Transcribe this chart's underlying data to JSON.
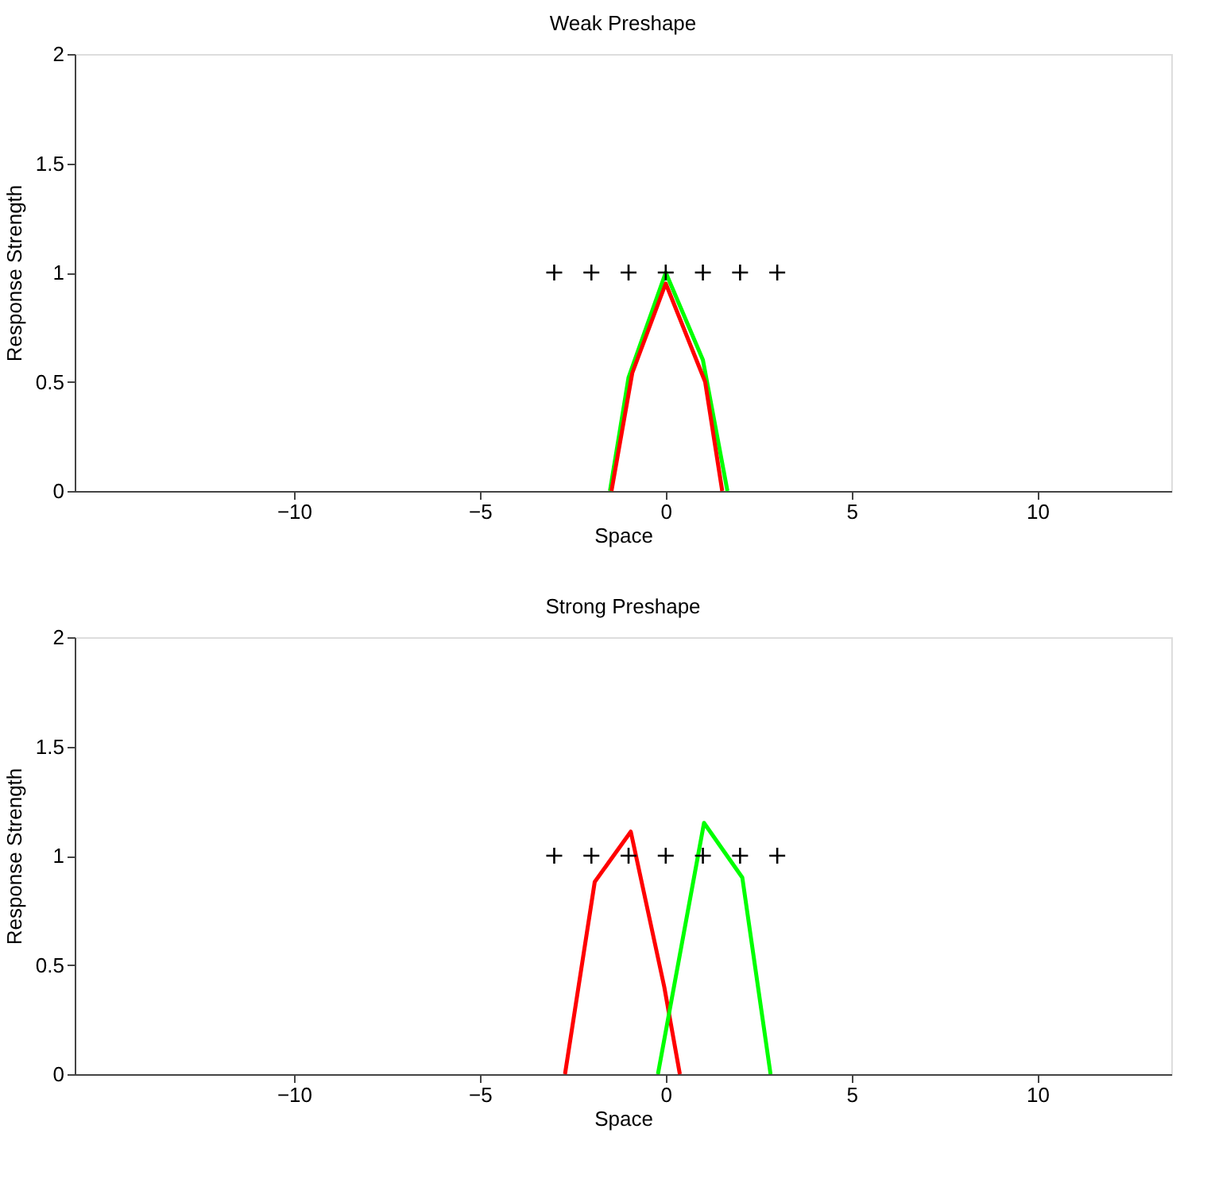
{
  "chart_data": [
    {
      "type": "line",
      "title": "Weak Preshape",
      "xlabel": "Space",
      "ylabel": "Response Strength",
      "xlim": [
        -15.9,
        13.6
      ],
      "xticks": [
        -10,
        -5,
        0,
        5,
        10
      ],
      "ylim": [
        0,
        2
      ],
      "yticks": [
        0,
        0.5,
        1,
        1.5,
        2
      ],
      "grid": false,
      "legend": false,
      "series": [
        {
          "color": "#00ff00",
          "x": [
            -1.5,
            -1,
            0,
            1,
            1.66
          ],
          "values": [
            0,
            0.52,
            1.0,
            0.6,
            0
          ]
        },
        {
          "color": "#ff0000",
          "x": [
            -1.46,
            -0.9,
            0,
            1.06,
            1.52
          ],
          "values": [
            0,
            0.54,
            0.95,
            0.5,
            0
          ]
        },
        {
          "type": "scatter",
          "color": "#000000",
          "marker": "cross",
          "x": [
            -3,
            -2,
            -1,
            0,
            1,
            2,
            3
          ],
          "values": [
            1,
            1,
            1,
            1,
            1,
            1,
            1
          ]
        }
      ]
    },
    {
      "type": "line",
      "title": "Strong Preshape",
      "xlabel": "Space",
      "ylabel": "Response Strength",
      "xlim": [
        -15.9,
        13.6
      ],
      "xticks": [
        -10,
        -5,
        0,
        5,
        10
      ],
      "ylim": [
        0,
        2
      ],
      "yticks": [
        0,
        0.5,
        1,
        1.5,
        2
      ],
      "grid": false,
      "legend": false,
      "series": [
        {
          "color": "#ff0000",
          "x": [
            -2.71,
            -1.91,
            -0.94,
            -0.04,
            0.38
          ],
          "values": [
            0,
            0.88,
            1.11,
            0.4,
            0
          ]
        },
        {
          "color": "#00ff00",
          "x": [
            -0.21,
            1.03,
            2.06,
            2.82
          ],
          "values": [
            0,
            1.15,
            0.9,
            0
          ]
        },
        {
          "type": "scatter",
          "color": "#000000",
          "marker": "cross",
          "x": [
            -3,
            -2,
            -1,
            0,
            1,
            2,
            3
          ],
          "values": [
            1,
            1,
            1,
            1,
            1,
            1,
            1
          ]
        }
      ]
    }
  ]
}
